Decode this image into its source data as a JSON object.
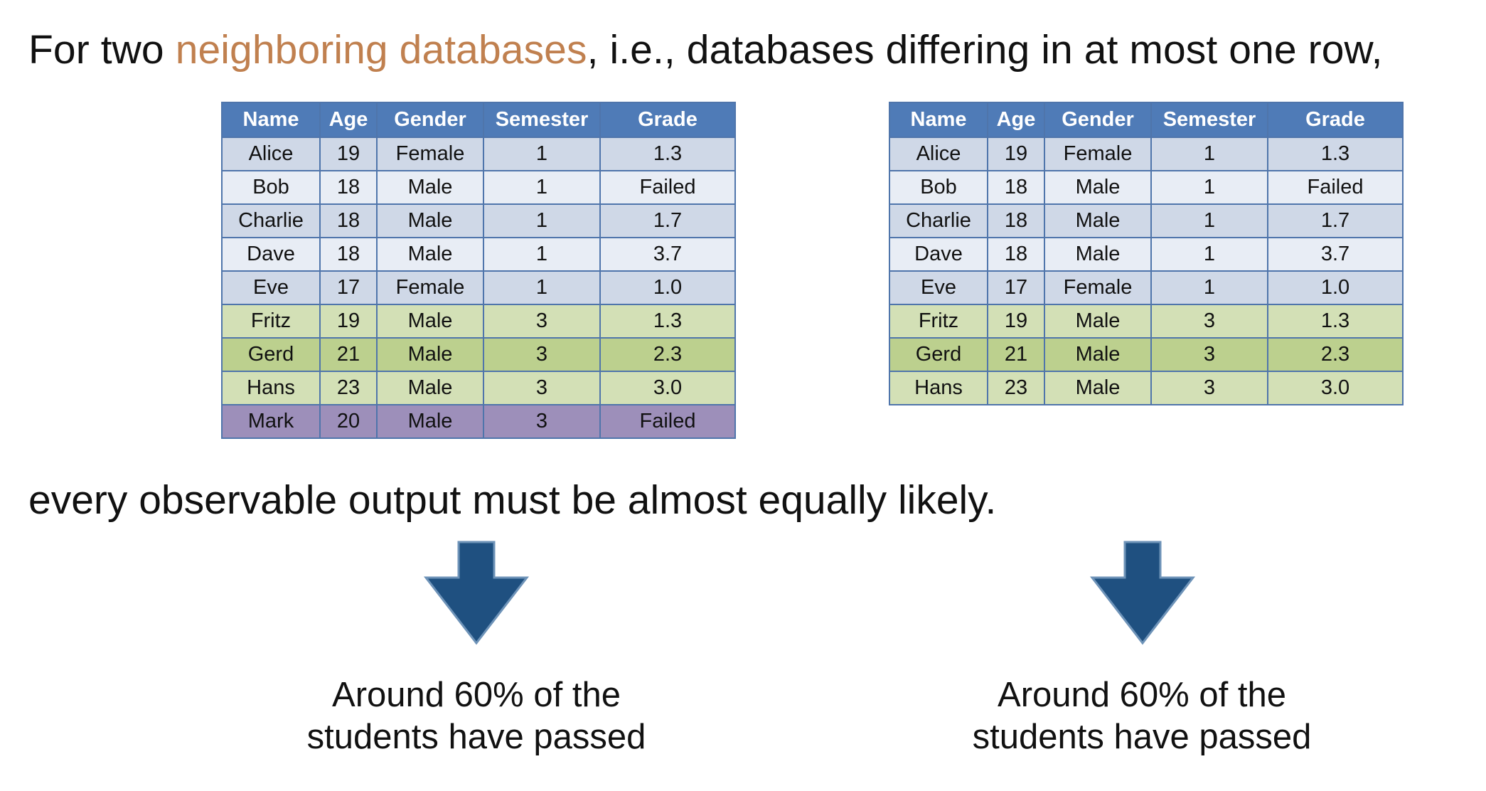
{
  "headline": {
    "prefix": "For two ",
    "accent": "neighboring databases",
    "suffix": ", i.e., databases differing in at most one row,",
    "accent_color": "#C0804F"
  },
  "subline": "every observable output must be almost equally likely.",
  "columns": [
    "Name",
    "Age",
    "Gender",
    "Semester",
    "Grade"
  ],
  "colors": {
    "header": "#4F7BB7",
    "row_blue_odd": "#CFD8E7",
    "row_blue_even": "#E8EDF5",
    "row_green": "#D3E0B6",
    "row_green_dark": "#BCD08E",
    "row_purple": "#9D8FBA",
    "arrow": "#1F5080"
  },
  "left_table": {
    "rows": [
      [
        "Alice",
        "19",
        "Female",
        "1",
        "1.3"
      ],
      [
        "Bob",
        "18",
        "Male",
        "1",
        "Failed"
      ],
      [
        "Charlie",
        "18",
        "Male",
        "1",
        "1.7"
      ],
      [
        "Dave",
        "18",
        "Male",
        "1",
        "3.7"
      ],
      [
        "Eve",
        "17",
        "Female",
        "1",
        "1.0"
      ],
      [
        "Fritz",
        "19",
        "Male",
        "3",
        "1.3"
      ],
      [
        "Gerd",
        "21",
        "Male",
        "3",
        "2.3"
      ],
      [
        "Hans",
        "23",
        "Male",
        "3",
        "3.0"
      ],
      [
        "Mark",
        "20",
        "Male",
        "3",
        "Failed"
      ]
    ]
  },
  "right_table": {
    "rows": [
      [
        "Alice",
        "19",
        "Female",
        "1",
        "1.3"
      ],
      [
        "Bob",
        "18",
        "Male",
        "1",
        "Failed"
      ],
      [
        "Charlie",
        "18",
        "Male",
        "1",
        "1.7"
      ],
      [
        "Dave",
        "18",
        "Male",
        "1",
        "3.7"
      ],
      [
        "Eve",
        "17",
        "Female",
        "1",
        "1.0"
      ],
      [
        "Fritz",
        "19",
        "Male",
        "3",
        "1.3"
      ],
      [
        "Gerd",
        "21",
        "Male",
        "3",
        "2.3"
      ],
      [
        "Hans",
        "23",
        "Male",
        "3",
        "3.0"
      ]
    ]
  },
  "output_left": {
    "icon": "down-arrow-icon",
    "line1": "Around 60% of the",
    "line2": "students have passed"
  },
  "output_right": {
    "icon": "down-arrow-icon",
    "line1": "Around 60% of the",
    "line2": "students have passed"
  }
}
